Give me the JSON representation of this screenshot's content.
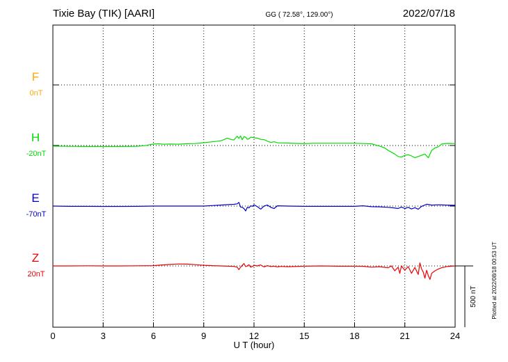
{
  "header": {
    "station": "Tixie Bay (TIK)  [AARI]",
    "coords": "GG ( 72.58°, 129.00°)",
    "date": "2022/07/18"
  },
  "footer": {
    "plotted": "Plotted at 2022/08/18 00:53 UT"
  },
  "chart_data": {
    "type": "line",
    "xlabel": "U T (hour)",
    "xlim": [
      0,
      24
    ],
    "xticks": [
      0,
      3,
      6,
      9,
      12,
      15,
      18,
      21,
      24
    ],
    "scale_bar_label": "500 nT",
    "scale_bar_nT": 500,
    "series": [
      {
        "name": "F",
        "baseline": "0nT",
        "color": "#ffaa00",
        "x": [],
        "y": []
      },
      {
        "name": "H",
        "baseline": "-20nT",
        "color": "#00dd00",
        "x": [
          0,
          1,
          2,
          3,
          4,
          5,
          5.5,
          6,
          6.3,
          6.6,
          7,
          7.5,
          8,
          8.5,
          9,
          9.5,
          10,
          10.2,
          10.4,
          10.6,
          10.8,
          11,
          11.1,
          11.2,
          11.3,
          11.4,
          11.5,
          11.6,
          11.7,
          11.8,
          12,
          12.2,
          12.4,
          12.6,
          12.8,
          13,
          13.2,
          13.4,
          13.6,
          14,
          14.5,
          15,
          15.5,
          16,
          16.5,
          17,
          17.5,
          18,
          18.5,
          19,
          19.5,
          19.8,
          20,
          20.2,
          20.4,
          20.6,
          20.8,
          21,
          21.2,
          21.4,
          21.6,
          21.8,
          22,
          22.2,
          22.4,
          22.6,
          22.8,
          23,
          23.2,
          23.5,
          24
        ],
        "y": [
          -25,
          -27,
          -28,
          -28,
          -28,
          -26,
          -21,
          -8,
          -6,
          -10,
          -8,
          -9,
          -5,
          -4,
          3,
          10,
          18,
          28,
          40,
          30,
          25,
          56,
          38,
          58,
          27,
          52,
          48,
          30,
          35,
          48,
          43,
          40,
          30,
          28,
          15,
          5,
          10,
          2,
          1,
          0,
          -3,
          -5,
          -2,
          -2,
          -2,
          -2,
          -2,
          -2,
          -4,
          -6,
          -25,
          -40,
          -60,
          -75,
          -90,
          -110,
          -115,
          -100,
          -95,
          -105,
          -120,
          -110,
          -100,
          -90,
          -120,
          -60,
          -40,
          -30,
          -8,
          -3,
          -4
        ]
      },
      {
        "name": "E",
        "baseline": "-70nT",
        "color": "#0000cc",
        "x": [
          0,
          1,
          2,
          3,
          4,
          5,
          6,
          7,
          8,
          9,
          9.5,
          10,
          10.5,
          10.8,
          11,
          11.1,
          11.2,
          11.3,
          11.4,
          11.5,
          11.6,
          11.7,
          11.8,
          11.9,
          12,
          12.2,
          12.4,
          12.6,
          12.8,
          13,
          13.2,
          13.4,
          14,
          15,
          16,
          17,
          18,
          18.5,
          19,
          19.5,
          20,
          20.3,
          20.6,
          20.8,
          21,
          21.2,
          21.4,
          21.6,
          21.8,
          22,
          22.3,
          22.6,
          23,
          23.5,
          24
        ],
        "y": [
          -70,
          -72,
          -72,
          -73,
          -73,
          -72,
          -70,
          -70,
          -70,
          -70,
          -66,
          -62,
          -58,
          -56,
          -52,
          -40,
          -78,
          -80,
          -90,
          -110,
          -80,
          -85,
          -68,
          -72,
          -60,
          -75,
          -95,
          -70,
          -62,
          -80,
          -90,
          -68,
          -70,
          -72,
          -72,
          -72,
          -72,
          -68,
          -75,
          -76,
          -80,
          -84,
          -90,
          -78,
          -90,
          -80,
          -94,
          -83,
          -96,
          -72,
          -55,
          -62,
          -60,
          -62,
          -64
        ]
      },
      {
        "name": "Z",
        "baseline": "20nT",
        "color": "#ee0000",
        "x": [
          0,
          1,
          2,
          3,
          4,
          5,
          6,
          6.5,
          7,
          7.5,
          8,
          8.5,
          9,
          9.5,
          10,
          10.5,
          10.8,
          11,
          11.1,
          11.2,
          11.3,
          11.4,
          11.5,
          11.6,
          11.7,
          11.8,
          11.9,
          12,
          12.2,
          12.4,
          12.6,
          12.8,
          13,
          13.2,
          13.4,
          13.6,
          14,
          15,
          16,
          17,
          18,
          18.5,
          19,
          19.5,
          20,
          20.2,
          20.4,
          20.6,
          20.7,
          20.8,
          21,
          21.2,
          21.4,
          21.6,
          21.8,
          21.9,
          22,
          22.1,
          22.2,
          22.3,
          22.4,
          22.5,
          22.6,
          22.8,
          23,
          23.2,
          23.5,
          24
        ],
        "y": [
          20,
          20,
          21,
          20,
          20,
          21,
          22,
          28,
          32,
          36,
          35,
          30,
          25,
          22,
          20,
          18,
          16,
          10,
          -10,
          10,
          25,
          40,
          15,
          20,
          30,
          10,
          15,
          25,
          20,
          28,
          12,
          22,
          15,
          18,
          12,
          16,
          14,
          18,
          20,
          18,
          18,
          17,
          10,
          14,
          5,
          20,
          -20,
          10,
          -40,
          20,
          -15,
          15,
          -40,
          8,
          -50,
          45,
          -5,
          -30,
          -80,
          -15,
          -60,
          -90,
          -40,
          -20,
          -5,
          5,
          15,
          20
        ]
      }
    ]
  }
}
